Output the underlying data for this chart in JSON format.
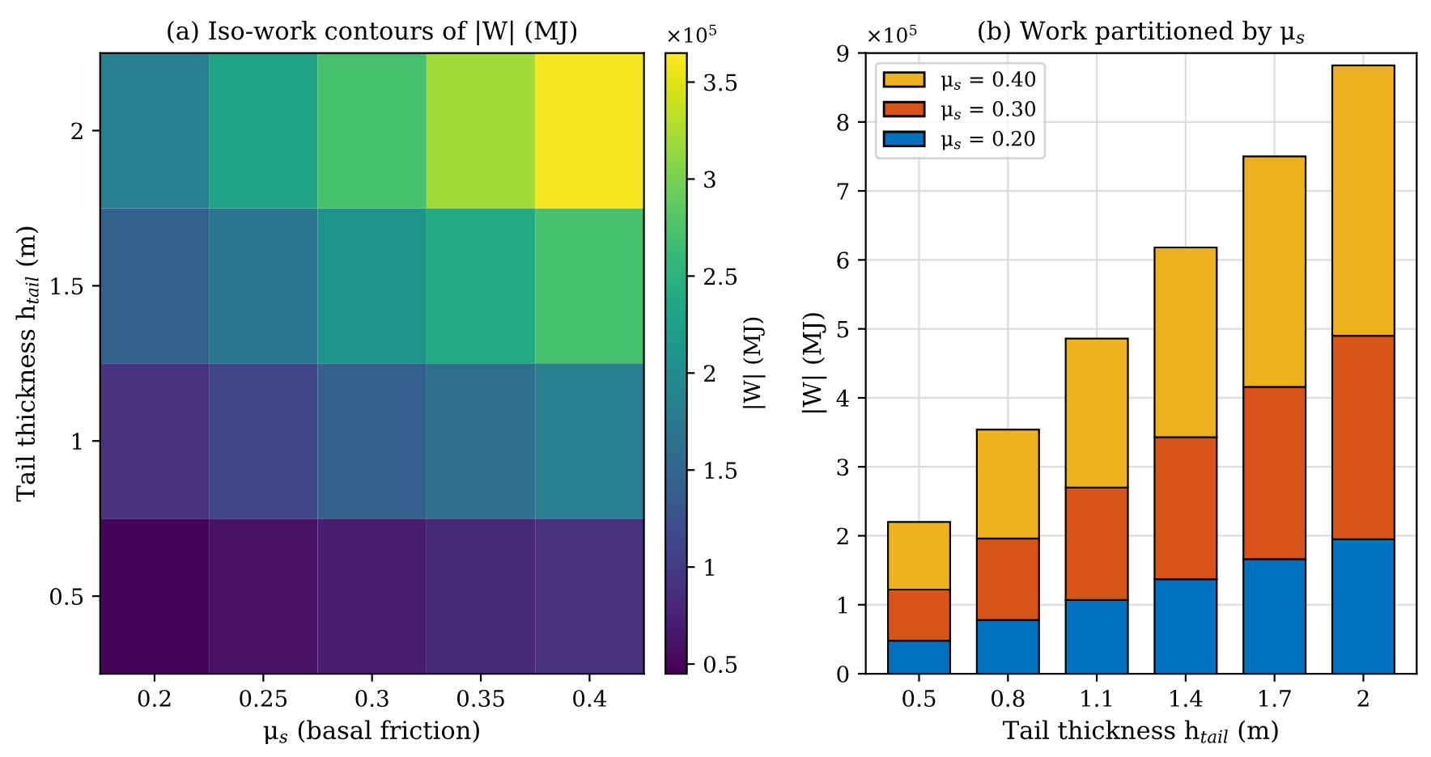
{
  "chart_data": [
    {
      "type": "heatmap",
      "title": "(a) Iso-work contours of |W| (MJ)",
      "xlabel": "μ$_{s}$ (basal friction)",
      "ylabel": "Tail thickness h$_{tail}$ (m)",
      "clabel": "|W| (MJ)",
      "categories": [
        "0.2",
        "0.25",
        "0.3",
        "0.35",
        "0.4"
      ],
      "y_categories": [
        "2",
        "1.5",
        "1",
        "0.5"
      ],
      "cells": [
        [
          1.8,
          2.3,
          2.7,
          3.2,
          3.6
        ],
        [
          1.4,
          1.7,
          2.1,
          2.4,
          2.7
        ],
        [
          0.9,
          1.1,
          1.4,
          1.6,
          1.8
        ],
        [
          0.5,
          0.6,
          0.7,
          0.8,
          0.9
        ]
      ],
      "clim": [
        0.45,
        3.65
      ],
      "cticks": [
        0.5,
        1,
        1.5,
        2,
        2.5,
        3,
        3.5
      ],
      "annotations": [
        "×10$^{5}$"
      ]
    },
    {
      "type": "bar",
      "stacked": true,
      "title": "(b) Work partitioned by μ$_{s}$",
      "xlabel": "Tail thickness h$_{tail}$ (m)",
      "ylabel": "|W| (MJ)",
      "categories": [
        "0.5",
        "0.8",
        "1.1",
        "1.4",
        "1.7",
        "2"
      ],
      "series": [
        {
          "name": "μ$_{s}$ = 0.20",
          "color": "#0072bd",
          "values": [
            0.48,
            0.78,
            1.07,
            1.37,
            1.66,
            1.95
          ]
        },
        {
          "name": "μ$_{s}$ = 0.30",
          "color": "#d95319",
          "values": [
            0.74,
            1.18,
            1.63,
            2.06,
            2.5,
            2.95
          ]
        },
        {
          "name": "μ$_{s}$ = 0.40",
          "color": "#edb120",
          "values": [
            0.98,
            1.58,
            2.16,
            2.75,
            3.34,
            3.92
          ]
        }
      ],
      "ylim": [
        0,
        9
      ],
      "yticks": [
        0,
        1,
        2,
        3,
        4,
        5,
        6,
        7,
        8,
        9
      ],
      "grid": true,
      "legend": "top left",
      "annotations": [
        "×10$^{5}$"
      ]
    }
  ]
}
